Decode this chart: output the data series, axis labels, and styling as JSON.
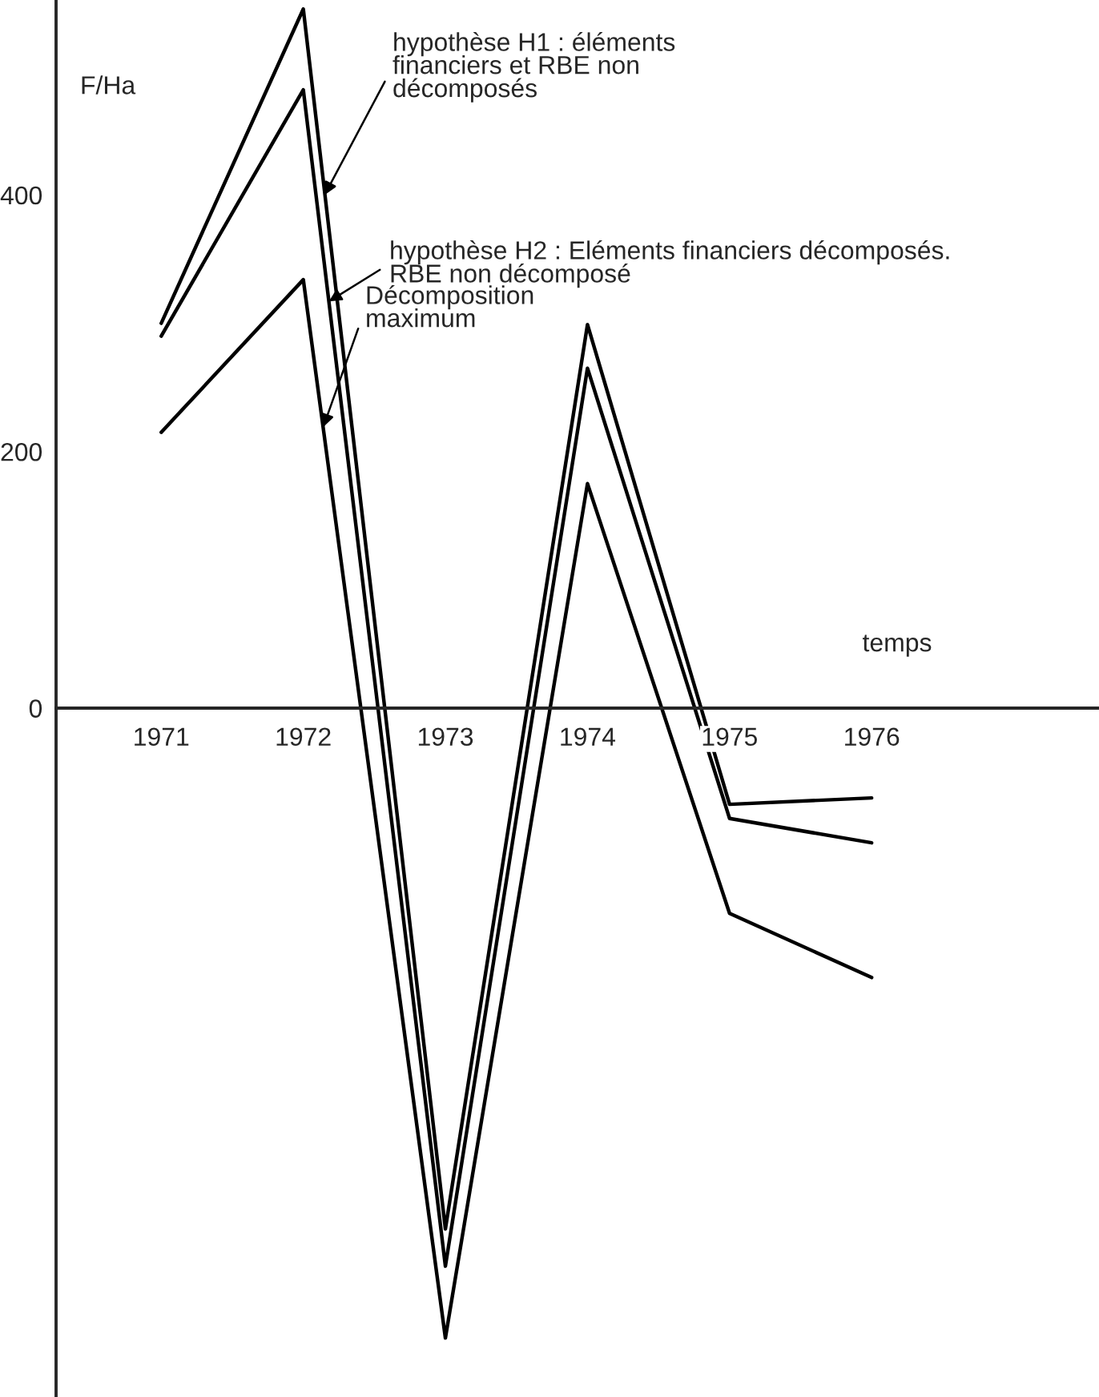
{
  "chart_data": {
    "type": "line",
    "x": [
      1971,
      1972,
      1973,
      1974,
      1975,
      1976
    ],
    "xlim": [
      1970.26,
      1977.6
    ],
    "ylim": [
      -537,
      552
    ],
    "xticks": [
      1971,
      1972,
      1973,
      1974,
      1975,
      1976
    ],
    "yticks": [
      0,
      200,
      400
    ],
    "xlabel": "temps",
    "ylabel": "F/Ha",
    "series": [
      {
        "color": "#000000",
        "values": [
          300,
          545,
          -406,
          299,
          -75,
          -70
        ]
      },
      {
        "color": "#000000",
        "values": [
          290,
          482,
          -435,
          265,
          -86,
          -105
        ]
      },
      {
        "color": "#000000",
        "values": [
          215,
          334,
          -491,
          175,
          -160,
          -210
        ]
      }
    ],
    "annotations": [
      {
        "text": "hypothèse H1 : éléments\nfinanciers et RBE non\ndécomposés",
        "x": 1972.15,
        "y": 400
      },
      {
        "text": "hypothèse H2 : Eléments financiers décomposés.\nRBE non décomposé",
        "x": 1972.18,
        "y": 317
      },
      {
        "text": "Décomposition\nmaximum",
        "x": 1972.14,
        "y": 219
      }
    ],
    "marker": "none",
    "line_style": "solid",
    "grid": false,
    "legend": false
  }
}
